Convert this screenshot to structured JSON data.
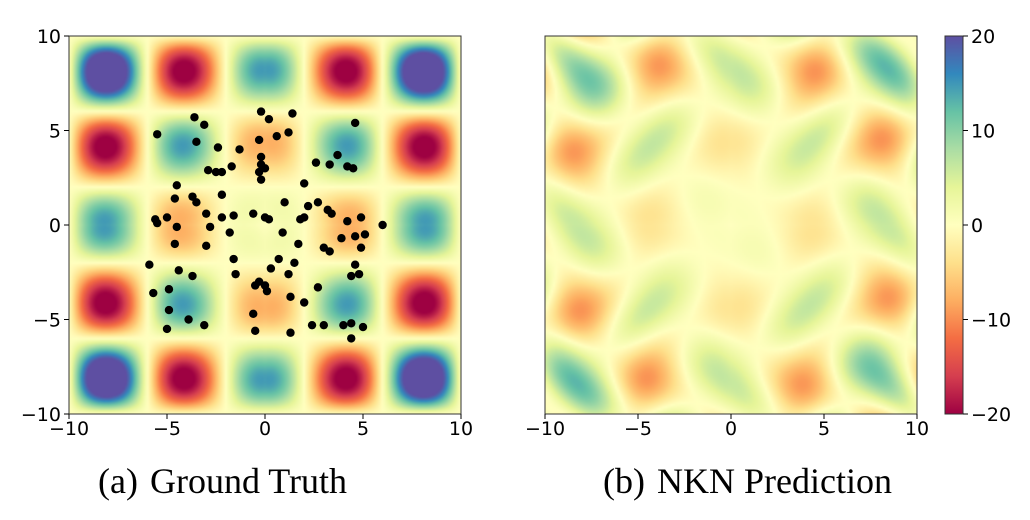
{
  "panels": [
    {
      "caption_tag": "(a)",
      "caption_text": "Ground Truth",
      "field": "ground_truth",
      "show_points": true,
      "y_ticks": true
    },
    {
      "caption_tag": "(b)",
      "caption_text": "NKN Prediction",
      "field": "prediction",
      "show_points": false,
      "y_ticks": false
    }
  ],
  "chart_data": [
    {
      "type": "heatmap",
      "title": "",
      "xlabel": "",
      "ylabel": "",
      "xlim": [
        -10,
        10
      ],
      "ylim": [
        -10,
        10
      ],
      "x_ticks": [
        -10,
        -5,
        0,
        5,
        10
      ],
      "y_ticks": [
        -10,
        -5,
        0,
        5,
        10
      ],
      "x_tick_labels": [
        "−10",
        "−5",
        "0",
        "5",
        "10"
      ],
      "y_tick_labels": [
        "−10",
        "−5",
        "0",
        "5",
        "10"
      ],
      "colormap": "Spectral",
      "vmin": -20,
      "vmax": 20,
      "grid": false,
      "scatter_points": [
        [
          -3.6,
          5.7
        ],
        [
          -3.1,
          5.3
        ],
        [
          -0.2,
          6.0
        ],
        [
          0.2,
          5.6
        ],
        [
          1.4,
          5.9
        ],
        [
          1.2,
          4.9
        ],
        [
          0.6,
          4.7
        ],
        [
          -0.3,
          4.5
        ],
        [
          4.6,
          5.4
        ],
        [
          -5.5,
          4.8
        ],
        [
          -3.5,
          4.4
        ],
        [
          -2.4,
          4.1
        ],
        [
          -1.3,
          4.0
        ],
        [
          -0.2,
          3.6
        ],
        [
          2.6,
          3.3
        ],
        [
          3.7,
          3.7
        ],
        [
          3.3,
          3.2
        ],
        [
          4.2,
          3.1
        ],
        [
          4.5,
          3.0
        ],
        [
          -2.9,
          2.9
        ],
        [
          -2.5,
          2.8
        ],
        [
          -2.2,
          2.8
        ],
        [
          -1.7,
          3.1
        ],
        [
          -0.2,
          3.2
        ],
        [
          0.0,
          3.0
        ],
        [
          -0.3,
          2.8
        ],
        [
          -0.2,
          2.4
        ],
        [
          2.0,
          2.2
        ],
        [
          -4.5,
          2.1
        ],
        [
          -4.6,
          1.4
        ],
        [
          -3.7,
          1.5
        ],
        [
          -3.5,
          1.2
        ],
        [
          -2.2,
          1.6
        ],
        [
          1.0,
          1.2
        ],
        [
          2.2,
          1.0
        ],
        [
          2.7,
          1.2
        ],
        [
          3.4,
          0.6
        ],
        [
          3.2,
          0.8
        ],
        [
          -5.6,
          0.3
        ],
        [
          -5.5,
          0.1
        ],
        [
          -5.0,
          0.4
        ],
        [
          -4.5,
          -0.1
        ],
        [
          -3.0,
          0.6
        ],
        [
          -2.2,
          0.4
        ],
        [
          -1.6,
          0.5
        ],
        [
          -0.6,
          0.6
        ],
        [
          0.0,
          0.4
        ],
        [
          0.2,
          0.3
        ],
        [
          1.8,
          0.3
        ],
        [
          2.0,
          0.4
        ],
        [
          4.2,
          0.2
        ],
        [
          4.9,
          0.4
        ],
        [
          6.0,
          0.0
        ],
        [
          -2.8,
          -0.1
        ],
        [
          -1.8,
          -0.4
        ],
        [
          0.9,
          -0.4
        ],
        [
          5.1,
          -0.5
        ],
        [
          4.6,
          -0.6
        ],
        [
          3.9,
          -0.7
        ],
        [
          -4.6,
          -1.0
        ],
        [
          -3.0,
          -1.1
        ],
        [
          1.7,
          -1.0
        ],
        [
          3.0,
          -1.2
        ],
        [
          3.3,
          -1.4
        ],
        [
          4.9,
          -1.2
        ],
        [
          -1.6,
          -1.8
        ],
        [
          0.7,
          -1.8
        ],
        [
          1.5,
          -2.0
        ],
        [
          4.6,
          -2.1
        ],
        [
          -5.9,
          -2.1
        ],
        [
          -4.4,
          -2.4
        ],
        [
          -3.7,
          -2.7
        ],
        [
          -1.5,
          -2.6
        ],
        [
          0.3,
          -2.3
        ],
        [
          1.2,
          -2.6
        ],
        [
          4.4,
          -2.7
        ],
        [
          4.8,
          -2.6
        ],
        [
          -5.7,
          -3.6
        ],
        [
          -4.9,
          -3.4
        ],
        [
          -0.5,
          -3.2
        ],
        [
          -0.3,
          -3.0
        ],
        [
          0.1,
          -3.5
        ],
        [
          0.0,
          -3.2
        ],
        [
          2.7,
          -3.3
        ],
        [
          -4.9,
          -4.5
        ],
        [
          1.3,
          -3.8
        ],
        [
          2.0,
          -4.1
        ],
        [
          -0.6,
          -4.7
        ],
        [
          -5.0,
          -5.5
        ],
        [
          -3.9,
          -5.0
        ],
        [
          -3.1,
          -5.3
        ],
        [
          -0.5,
          -5.6
        ],
        [
          1.3,
          -5.7
        ],
        [
          2.4,
          -5.3
        ],
        [
          3.0,
          -5.3
        ],
        [
          4.0,
          -5.3
        ],
        [
          4.4,
          -5.2
        ],
        [
          4.4,
          -6.0
        ],
        [
          5.0,
          -5.4
        ]
      ]
    },
    {
      "type": "heatmap",
      "title": "",
      "xlabel": "",
      "ylabel": "",
      "xlim": [
        -10,
        10
      ],
      "ylim": [
        -10,
        10
      ],
      "x_ticks": [
        -10,
        -5,
        0,
        5,
        10
      ],
      "x_tick_labels": [
        "−10",
        "−5",
        "0",
        "5",
        "10"
      ],
      "colormap": "Spectral",
      "vmin": -20,
      "vmax": 20,
      "grid": false,
      "colorbar": {
        "ticks": [
          20,
          10,
          0,
          -10,
          -20
        ],
        "tick_labels": [
          "20",
          "10",
          "0",
          "−10",
          "−20"
        ]
      }
    }
  ]
}
